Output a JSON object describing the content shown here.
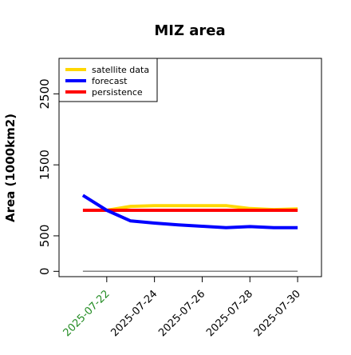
{
  "chart_data": {
    "type": "line",
    "title": "MIZ area",
    "ylabel": "Area (1000km2)",
    "xlabel": "",
    "ylim": [
      -75,
      3000
    ],
    "xlim": [
      "2025-07-20",
      "2025-07-31"
    ],
    "grid": false,
    "legend_position": "top-left",
    "y_ticks": [
      0,
      500,
      1500,
      2500
    ],
    "x_ticks": [
      {
        "label": "2025-07-22",
        "value": "2025-07-22",
        "color": "#228B22"
      },
      {
        "label": "2025-07-24",
        "value": "2025-07-24",
        "color": "#000000"
      },
      {
        "label": "2025-07-26",
        "value": "2025-07-26",
        "color": "#000000"
      },
      {
        "label": "2025-07-28",
        "value": "2025-07-28",
        "color": "#000000"
      },
      {
        "label": "2025-07-30",
        "value": "2025-07-30",
        "color": "#000000"
      }
    ],
    "series": [
      {
        "name": "satellite data",
        "color": "#FFD700",
        "x": [
          "2025-07-22",
          "2025-07-23",
          "2025-07-24",
          "2025-07-25",
          "2025-07-26",
          "2025-07-27",
          "2025-07-28",
          "2025-07-29",
          "2025-07-30"
        ],
        "y": [
          860,
          915,
          925,
          925,
          925,
          925,
          885,
          870,
          880
        ]
      },
      {
        "name": "forecast",
        "color": "#0000FF",
        "x": [
          "2025-07-21",
          "2025-07-22",
          "2025-07-23",
          "2025-07-24",
          "2025-07-25",
          "2025-07-26",
          "2025-07-27",
          "2025-07-28",
          "2025-07-29",
          "2025-07-30"
        ],
        "y": [
          1070,
          860,
          710,
          680,
          655,
          635,
          615,
          630,
          615,
          615
        ]
      },
      {
        "name": "persistence",
        "color": "#FF0000",
        "x": [
          "2025-07-21",
          "2025-07-30"
        ],
        "y": [
          860,
          860
        ]
      }
    ],
    "reference_line": {
      "color": "#808080",
      "x": [
        "2025-07-21",
        "2025-07-30"
      ],
      "y": [
        0,
        0
      ]
    }
  }
}
